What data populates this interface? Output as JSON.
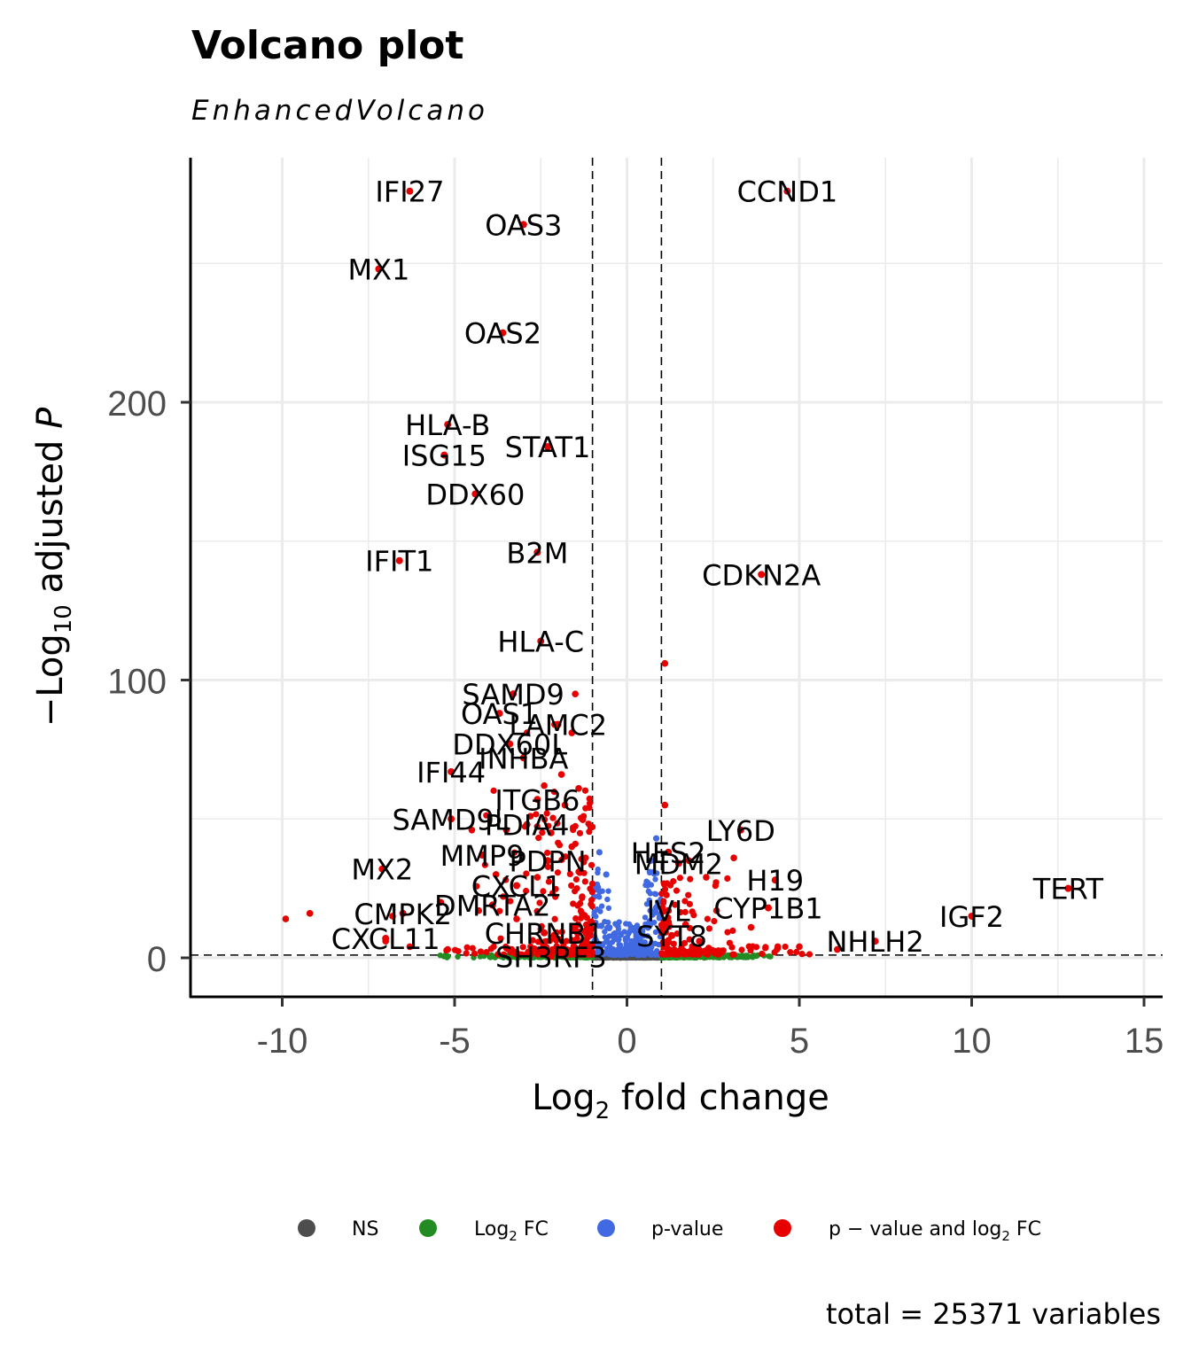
{
  "chart_data": {
    "type": "scatter",
    "title": "Volcano plot",
    "subtitle": "EnhancedVolcano",
    "xlabel": {
      "base": "Log",
      "sub": "2",
      "rest": " fold change"
    },
    "ylabel": {
      "prefix": "−Log",
      "sub": "10",
      "rest": " adjusted ",
      "italic": "P"
    },
    "xlim": [
      -12.5,
      15.5
    ],
    "ylim": [
      -14,
      287
    ],
    "xticks": [
      -10,
      -5,
      0,
      5,
      10,
      15
    ],
    "xtick_labels": [
      "-10",
      "-5",
      "0",
      "5",
      "10",
      "15"
    ],
    "yticks": [
      0,
      100,
      200
    ],
    "ytick_labels": [
      "0",
      "100",
      "200"
    ],
    "grid": true,
    "fc_cutoff": 1,
    "p_cutoff_line": 1,
    "colors": {
      "NS": "#4d4d4d",
      "FC": "#228b22",
      "P": "#4169e1",
      "FC_P": "#e60000"
    },
    "legend": {
      "position": "bottom",
      "items": [
        {
          "key": "NS",
          "label": "NS"
        },
        {
          "key": "FC",
          "label": "Log",
          "sub": "2",
          "rest": " FC"
        },
        {
          "key": "P",
          "label": "p-value"
        },
        {
          "key": "FC_P",
          "label": "p − value and log",
          "sub": "2",
          "rest": " FC"
        }
      ]
    },
    "caption": "total = 25371 variables",
    "labeled_points": [
      {
        "gene": "IFI27",
        "x": -6.3,
        "y": 276
      },
      {
        "gene": "CCND1",
        "x": 4.65,
        "y": 276
      },
      {
        "gene": "OAS3",
        "x": -3.0,
        "y": 264
      },
      {
        "gene": "MX1",
        "x": -7.2,
        "y": 248
      },
      {
        "gene": "OAS2",
        "x": -3.6,
        "y": 225
      },
      {
        "gene": "HLA-B",
        "x": -5.2,
        "y": 192
      },
      {
        "gene": "STAT1",
        "x": -2.3,
        "y": 184
      },
      {
        "gene": "ISG15",
        "x": -5.3,
        "y": 181
      },
      {
        "gene": "DDX60",
        "x": -4.4,
        "y": 167
      },
      {
        "gene": "B2M",
        "x": -2.6,
        "y": 146
      },
      {
        "gene": "IFIT1",
        "x": -6.6,
        "y": 143
      },
      {
        "gene": "CDKN2A",
        "x": 3.9,
        "y": 138
      },
      {
        "gene": "HLA-C",
        "x": -2.5,
        "y": 114
      },
      {
        "gene": "SAMD9",
        "x": -3.3,
        "y": 95
      },
      {
        "gene": "OAS1",
        "x": -3.7,
        "y": 88
      },
      {
        "gene": "LAMC2",
        "x": -2.0,
        "y": 84
      },
      {
        "gene": "DDX60L",
        "x": -3.4,
        "y": 77
      },
      {
        "gene": "IFI44",
        "x": -5.1,
        "y": 67
      },
      {
        "gene": "INHBA",
        "x": -3.0,
        "y": 72
      },
      {
        "gene": "ITGB6",
        "x": -2.6,
        "y": 57
      },
      {
        "gene": "LY6D",
        "x": 3.3,
        "y": 46
      },
      {
        "gene": "SAMD9L",
        "x": -5.1,
        "y": 50
      },
      {
        "gene": "PDIA4",
        "x": -2.9,
        "y": 48
      },
      {
        "gene": "MMP9",
        "x": -4.2,
        "y": 37
      },
      {
        "gene": "HES2",
        "x": 1.2,
        "y": 38
      },
      {
        "gene": "PDPN",
        "x": -2.3,
        "y": 35
      },
      {
        "gene": "MX2",
        "x": -7.1,
        "y": 32
      },
      {
        "gene": "MDM2",
        "x": 1.5,
        "y": 34
      },
      {
        "gene": "H19",
        "x": 4.3,
        "y": 28
      },
      {
        "gene": "TERT",
        "x": 12.8,
        "y": 25
      },
      {
        "gene": "CXCL1",
        "x": -3.2,
        "y": 26
      },
      {
        "gene": "CMPK2",
        "x": -6.5,
        "y": 16
      },
      {
        "gene": "DMRTA2",
        "x": -3.9,
        "y": 19
      },
      {
        "gene": "IVL",
        "x": 1.2,
        "y": 17
      },
      {
        "gene": "CYP1B1",
        "x": 4.1,
        "y": 18
      },
      {
        "gene": "IGF2",
        "x": 10.0,
        "y": 15
      },
      {
        "gene": "CXCL11",
        "x": -7.0,
        "y": 7
      },
      {
        "gene": "CHRNB1",
        "x": -2.4,
        "y": 9
      },
      {
        "gene": "SYT8",
        "x": 1.3,
        "y": 8
      },
      {
        "gene": "NHLH2",
        "x": 7.2,
        "y": 6
      },
      {
        "gene": "SH3RF3",
        "x": -2.2,
        "y": 0.5
      }
    ],
    "other_significant_points": [
      {
        "x": 1.1,
        "y": 106
      },
      {
        "x": -1.5,
        "y": 95
      },
      {
        "x": -1.6,
        "y": 81
      },
      {
        "x": -2.1,
        "y": 84
      },
      {
        "x": -2.9,
        "y": 81
      },
      {
        "x": -1.9,
        "y": 66
      },
      {
        "x": -2.4,
        "y": 62
      },
      {
        "x": 1.1,
        "y": 55
      },
      {
        "x": -1.4,
        "y": 61
      },
      {
        "x": -1.8,
        "y": 55
      },
      {
        "x": -2.8,
        "y": 51
      },
      {
        "x": -1.3,
        "y": 50
      },
      {
        "x": -3.5,
        "y": 46
      },
      {
        "x": -4.5,
        "y": 46
      },
      {
        "x": -2.2,
        "y": 45
      },
      {
        "x": -1.6,
        "y": 40
      },
      {
        "x": 3.1,
        "y": 36
      },
      {
        "x": 1.8,
        "y": 35
      },
      {
        "x": -3.8,
        "y": 30
      },
      {
        "x": 2.3,
        "y": 29
      },
      {
        "x": -1.2,
        "y": 36
      },
      {
        "x": -9.9,
        "y": 14
      },
      {
        "x": -9.2,
        "y": 16
      },
      {
        "x": -6.8,
        "y": 15
      },
      {
        "x": -5.4,
        "y": 20
      },
      {
        "x": -4.3,
        "y": 17
      },
      {
        "x": 2.6,
        "y": 17
      },
      {
        "x": 3.6,
        "y": 11
      },
      {
        "x": -7.0,
        "y": 6
      },
      {
        "x": -5.2,
        "y": 3
      },
      {
        "x": -6.3,
        "y": 4
      },
      {
        "x": 6.1,
        "y": 3
      },
      {
        "x": 5.0,
        "y": 4
      },
      {
        "x": -1.3,
        "y": 22
      },
      {
        "x": 1.7,
        "y": 12
      },
      {
        "x": 2.1,
        "y": 6
      },
      {
        "x": -1.5,
        "y": 10
      },
      {
        "x": -3.2,
        "y": 14
      },
      {
        "x": -2.6,
        "y": 29
      }
    ]
  }
}
